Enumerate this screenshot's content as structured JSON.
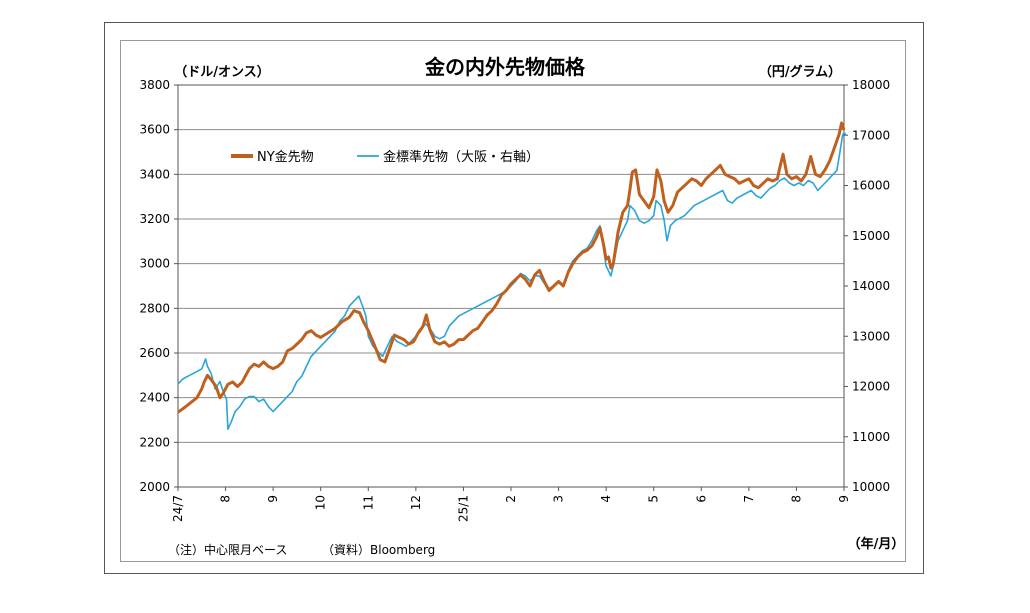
{
  "chart_data": {
    "type": "line",
    "title": "金の内外先物価格",
    "left_axis_unit": "（ドル/オンス）",
    "right_axis_unit": "（円/グラム）",
    "x_unit": "（年/月）",
    "note": "（注）中心限月ベース",
    "source": "（資料）Bloomberg",
    "x_ticks": [
      "24/7",
      "8",
      "9",
      "10",
      "11",
      "12",
      "25/1",
      "2",
      "3",
      "4",
      "5",
      "6",
      "7",
      "8",
      "9"
    ],
    "ylim_left": [
      2000,
      3800
    ],
    "yticks_left": [
      2000,
      2200,
      2400,
      2600,
      2800,
      3000,
      3200,
      3400,
      3600,
      3800
    ],
    "ylim_right": [
      10000,
      18000
    ],
    "yticks_right": [
      10000,
      11000,
      12000,
      13000,
      14000,
      15000,
      16000,
      17000,
      18000
    ],
    "grid": true,
    "legend_placement": "top-left",
    "series": [
      {
        "name": "NY金先物",
        "axis": "left",
        "color": "#c0601e",
        "values": [
          [
            0,
            2335
          ],
          [
            0.1,
            2350
          ],
          [
            0.25,
            2375
          ],
          [
            0.4,
            2400
          ],
          [
            0.5,
            2440
          ],
          [
            0.55,
            2470
          ],
          [
            0.62,
            2500
          ],
          [
            0.7,
            2480
          ],
          [
            0.8,
            2450
          ],
          [
            0.88,
            2400
          ],
          [
            0.95,
            2420
          ],
          [
            1.05,
            2460
          ],
          [
            1.15,
            2470
          ],
          [
            1.25,
            2450
          ],
          [
            1.35,
            2470
          ],
          [
            1.5,
            2530
          ],
          [
            1.6,
            2550
          ],
          [
            1.7,
            2540
          ],
          [
            1.8,
            2560
          ],
          [
            1.9,
            2540
          ],
          [
            2.0,
            2530
          ],
          [
            2.1,
            2540
          ],
          [
            2.2,
            2560
          ],
          [
            2.3,
            2610
          ],
          [
            2.4,
            2620
          ],
          [
            2.5,
            2640
          ],
          [
            2.6,
            2660
          ],
          [
            2.7,
            2690
          ],
          [
            2.8,
            2700
          ],
          [
            2.9,
            2680
          ],
          [
            3.0,
            2670
          ],
          [
            3.15,
            2690
          ],
          [
            3.3,
            2710
          ],
          [
            3.45,
            2740
          ],
          [
            3.6,
            2760
          ],
          [
            3.7,
            2790
          ],
          [
            3.82,
            2780
          ],
          [
            3.9,
            2740
          ],
          [
            4.0,
            2700
          ],
          [
            4.12,
            2640
          ],
          [
            4.25,
            2570
          ],
          [
            4.35,
            2560
          ],
          [
            4.45,
            2620
          ],
          [
            4.55,
            2680
          ],
          [
            4.65,
            2670
          ],
          [
            4.75,
            2660
          ],
          [
            4.85,
            2640
          ],
          [
            4.95,
            2650
          ],
          [
            5.05,
            2690
          ],
          [
            5.15,
            2720
          ],
          [
            5.22,
            2770
          ],
          [
            5.3,
            2700
          ],
          [
            5.4,
            2650
          ],
          [
            5.5,
            2640
          ],
          [
            5.6,
            2650
          ],
          [
            5.7,
            2630
          ],
          [
            5.8,
            2640
          ],
          [
            5.9,
            2660
          ],
          [
            6.0,
            2660
          ],
          [
            6.1,
            2680
          ],
          [
            6.2,
            2700
          ],
          [
            6.3,
            2710
          ],
          [
            6.4,
            2740
          ],
          [
            6.5,
            2770
          ],
          [
            6.6,
            2790
          ],
          [
            6.7,
            2820
          ],
          [
            6.8,
            2860
          ],
          [
            6.9,
            2880
          ],
          [
            7.0,
            2910
          ],
          [
            7.1,
            2930
          ],
          [
            7.2,
            2950
          ],
          [
            7.3,
            2930
          ],
          [
            7.4,
            2900
          ],
          [
            7.5,
            2950
          ],
          [
            7.6,
            2970
          ],
          [
            7.7,
            2920
          ],
          [
            7.8,
            2880
          ],
          [
            7.9,
            2900
          ],
          [
            8.0,
            2920
          ],
          [
            8.1,
            2900
          ],
          [
            8.2,
            2960
          ],
          [
            8.3,
            3000
          ],
          [
            8.4,
            3030
          ],
          [
            8.5,
            3050
          ],
          [
            8.6,
            3060
          ],
          [
            8.7,
            3080
          ],
          [
            8.8,
            3120
          ],
          [
            8.87,
            3160
          ],
          [
            8.95,
            3080
          ],
          [
            9.0,
            3020
          ],
          [
            9.05,
            3030
          ],
          [
            9.1,
            2980
          ],
          [
            9.15,
            3000
          ],
          [
            9.25,
            3140
          ],
          [
            9.35,
            3230
          ],
          [
            9.45,
            3260
          ],
          [
            9.5,
            3330
          ],
          [
            9.55,
            3410
          ],
          [
            9.62,
            3420
          ],
          [
            9.7,
            3310
          ],
          [
            9.8,
            3280
          ],
          [
            9.9,
            3250
          ],
          [
            10.0,
            3300
          ],
          [
            10.07,
            3420
          ],
          [
            10.15,
            3370
          ],
          [
            10.22,
            3280
          ],
          [
            10.3,
            3230
          ],
          [
            10.4,
            3260
          ],
          [
            10.5,
            3320
          ],
          [
            10.6,
            3340
          ],
          [
            10.7,
            3360
          ],
          [
            10.8,
            3380
          ],
          [
            10.9,
            3370
          ],
          [
            11.0,
            3350
          ],
          [
            11.1,
            3380
          ],
          [
            11.2,
            3400
          ],
          [
            11.3,
            3420
          ],
          [
            11.4,
            3440
          ],
          [
            11.5,
            3400
          ],
          [
            11.6,
            3390
          ],
          [
            11.7,
            3380
          ],
          [
            11.8,
            3360
          ],
          [
            11.9,
            3370
          ],
          [
            12.0,
            3380
          ],
          [
            12.1,
            3350
          ],
          [
            12.2,
            3340
          ],
          [
            12.3,
            3360
          ],
          [
            12.4,
            3380
          ],
          [
            12.5,
            3370
          ],
          [
            12.6,
            3380
          ],
          [
            12.65,
            3430
          ],
          [
            12.72,
            3490
          ],
          [
            12.8,
            3400
          ],
          [
            12.9,
            3380
          ],
          [
            13.0,
            3390
          ],
          [
            13.1,
            3370
          ],
          [
            13.2,
            3400
          ],
          [
            13.3,
            3480
          ],
          [
            13.4,
            3400
          ],
          [
            13.5,
            3390
          ],
          [
            13.6,
            3420
          ],
          [
            13.7,
            3460
          ],
          [
            13.8,
            3520
          ],
          [
            13.9,
            3580
          ],
          [
            13.95,
            3630
          ],
          [
            14.0,
            3600
          ]
        ]
      },
      {
        "name": "金標準先物（大阪・右軸）",
        "axis": "right",
        "color": "#29a5d8",
        "values": [
          [
            0,
            12050
          ],
          [
            0.1,
            12150
          ],
          [
            0.2,
            12200
          ],
          [
            0.3,
            12250
          ],
          [
            0.4,
            12300
          ],
          [
            0.5,
            12350
          ],
          [
            0.58,
            12550
          ],
          [
            0.62,
            12400
          ],
          [
            0.7,
            12250
          ],
          [
            0.78,
            11950
          ],
          [
            0.88,
            12100
          ],
          [
            0.95,
            11900
          ],
          [
            1.02,
            11750
          ],
          [
            1.05,
            11150
          ],
          [
            1.12,
            11300
          ],
          [
            1.2,
            11500
          ],
          [
            1.3,
            11600
          ],
          [
            1.4,
            11750
          ],
          [
            1.5,
            11800
          ],
          [
            1.6,
            11800
          ],
          [
            1.7,
            11700
          ],
          [
            1.8,
            11750
          ],
          [
            1.9,
            11600
          ],
          [
            2.0,
            11500
          ],
          [
            2.1,
            11600
          ],
          [
            2.2,
            11700
          ],
          [
            2.3,
            11800
          ],
          [
            2.4,
            11900
          ],
          [
            2.5,
            12100
          ],
          [
            2.6,
            12200
          ],
          [
            2.7,
            12400
          ],
          [
            2.8,
            12600
          ],
          [
            2.9,
            12700
          ],
          [
            3.0,
            12800
          ],
          [
            3.1,
            12900
          ],
          [
            3.2,
            13000
          ],
          [
            3.3,
            13100
          ],
          [
            3.4,
            13300
          ],
          [
            3.5,
            13400
          ],
          [
            3.6,
            13600
          ],
          [
            3.7,
            13700
          ],
          [
            3.8,
            13800
          ],
          [
            3.88,
            13600
          ],
          [
            3.95,
            13400
          ],
          [
            4.0,
            13000
          ],
          [
            4.1,
            12800
          ],
          [
            4.2,
            12700
          ],
          [
            4.3,
            12600
          ],
          [
            4.4,
            12800
          ],
          [
            4.5,
            13000
          ],
          [
            4.6,
            12900
          ],
          [
            4.7,
            12850
          ],
          [
            4.8,
            12800
          ],
          [
            4.9,
            12900
          ],
          [
            5.0,
            13000
          ],
          [
            5.1,
            13100
          ],
          [
            5.2,
            13250
          ],
          [
            5.3,
            13150
          ],
          [
            5.4,
            13000
          ],
          [
            5.5,
            12950
          ],
          [
            5.6,
            13000
          ],
          [
            5.7,
            13200
          ],
          [
            5.8,
            13300
          ],
          [
            5.9,
            13400
          ],
          [
            6.0,
            13450
          ],
          [
            6.1,
            13500
          ],
          [
            6.2,
            13550
          ],
          [
            6.3,
            13600
          ],
          [
            6.4,
            13650
          ],
          [
            6.5,
            13700
          ],
          [
            6.6,
            13750
          ],
          [
            6.7,
            13800
          ],
          [
            6.8,
            13850
          ],
          [
            6.9,
            13900
          ],
          [
            7.0,
            14000
          ],
          [
            7.1,
            14100
          ],
          [
            7.2,
            14250
          ],
          [
            7.3,
            14200
          ],
          [
            7.4,
            14100
          ],
          [
            7.5,
            14200
          ],
          [
            7.6,
            14200
          ],
          [
            7.7,
            14050
          ],
          [
            7.8,
            13950
          ],
          [
            7.9,
            14000
          ],
          [
            8.0,
            14100
          ],
          [
            8.1,
            14000
          ],
          [
            8.2,
            14300
          ],
          [
            8.3,
            14500
          ],
          [
            8.4,
            14600
          ],
          [
            8.5,
            14700
          ],
          [
            8.6,
            14750
          ],
          [
            8.7,
            14900
          ],
          [
            8.8,
            15100
          ],
          [
            8.87,
            15200
          ],
          [
            8.95,
            14700
          ],
          [
            9.0,
            14400
          ],
          [
            9.05,
            14300
          ],
          [
            9.1,
            14200
          ],
          [
            9.15,
            14400
          ],
          [
            9.25,
            14900
          ],
          [
            9.35,
            15100
          ],
          [
            9.45,
            15300
          ],
          [
            9.5,
            15600
          ],
          [
            9.6,
            15500
          ],
          [
            9.7,
            15300
          ],
          [
            9.8,
            15250
          ],
          [
            9.9,
            15300
          ],
          [
            10.0,
            15400
          ],
          [
            10.05,
            15700
          ],
          [
            10.15,
            15600
          ],
          [
            10.22,
            15300
          ],
          [
            10.28,
            14900
          ],
          [
            10.35,
            15200
          ],
          [
            10.45,
            15300
          ],
          [
            10.55,
            15350
          ],
          [
            10.65,
            15400
          ],
          [
            10.75,
            15500
          ],
          [
            10.85,
            15600
          ],
          [
            10.95,
            15650
          ],
          [
            11.05,
            15700
          ],
          [
            11.15,
            15750
          ],
          [
            11.25,
            15800
          ],
          [
            11.35,
            15850
          ],
          [
            11.45,
            15900
          ],
          [
            11.55,
            15700
          ],
          [
            11.65,
            15650
          ],
          [
            11.75,
            15750
          ],
          [
            11.85,
            15800
          ],
          [
            11.95,
            15850
          ],
          [
            12.05,
            15900
          ],
          [
            12.15,
            15800
          ],
          [
            12.25,
            15750
          ],
          [
            12.35,
            15850
          ],
          [
            12.45,
            15950
          ],
          [
            12.55,
            16000
          ],
          [
            12.65,
            16100
          ],
          [
            12.75,
            16150
          ],
          [
            12.85,
            16050
          ],
          [
            12.95,
            16000
          ],
          [
            13.05,
            16050
          ],
          [
            13.15,
            16000
          ],
          [
            13.25,
            16100
          ],
          [
            13.35,
            16050
          ],
          [
            13.45,
            15900
          ],
          [
            13.55,
            16000
          ],
          [
            13.65,
            16100
          ],
          [
            13.75,
            16200
          ],
          [
            13.85,
            16300
          ],
          [
            13.92,
            16700
          ],
          [
            13.97,
            17000
          ],
          [
            14.0,
            17050
          ],
          [
            14.05,
            17000
          ]
        ]
      }
    ]
  }
}
